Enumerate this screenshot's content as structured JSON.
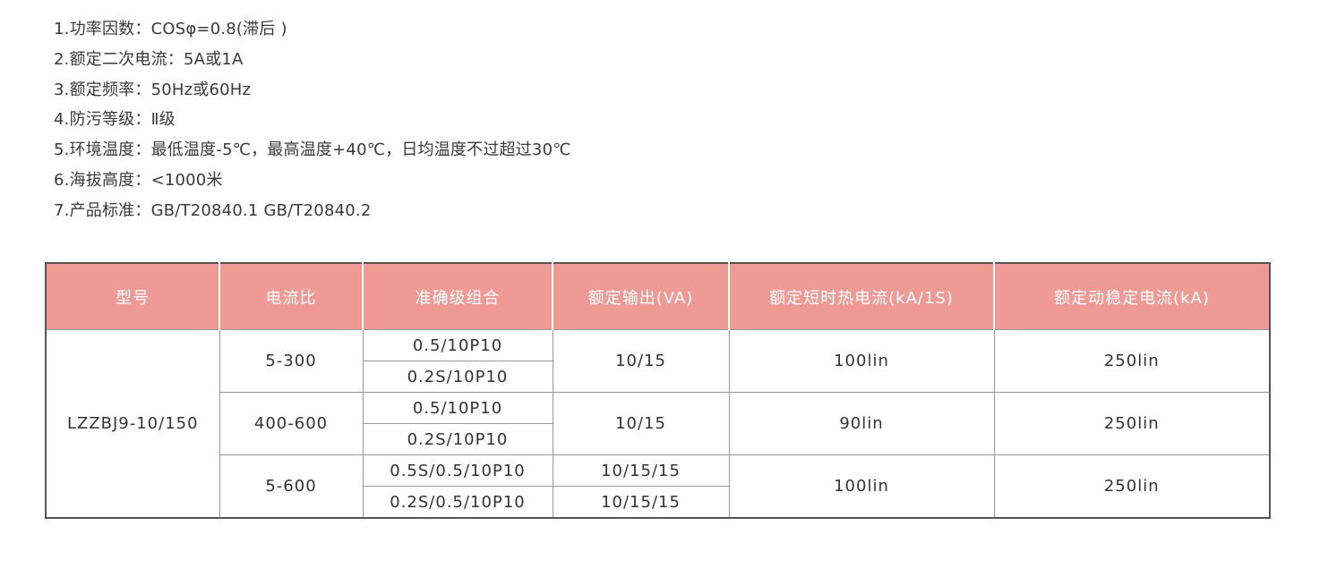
{
  "specs": [
    "1.功率因数：COSφ=0.8(滞后 )",
    "2.额定二次电流：5A或1A",
    "3.额定频率：50Hz或60Hz",
    "4.防污等级：Ⅱ级",
    "5.环境温度：最低温度-5℃，最高温度+40℃，日均温度不过超过30℃",
    "6.海拔高度：<1000米",
    "7.产品标准：GB/T20840.1   GB/T20840.2"
  ],
  "table": {
    "header_color": "#f09a96",
    "headers": [
      "型号",
      "电流比",
      "准确级组合",
      "额定输出(VA)",
      "额定短时热电流(kA/1S)",
      "额定动稳定电流(kA)"
    ],
    "model": "LZZBJ9-10/150",
    "groups": [
      {
        "ratio": "5-300",
        "accuracy": [
          "0.5/10P10",
          "0.2S/10P10"
        ],
        "output": "10/15",
        "thermal": "100lin",
        "dynamic": "250lin"
      },
      {
        "ratio": "400-600",
        "accuracy": [
          "0.5/10P10",
          "0.2S/10P10"
        ],
        "output": "10/15",
        "thermal": "90lin",
        "dynamic": "250lin"
      },
      {
        "ratio": "5-600",
        "accuracy": [
          "0.5S/0.5/10P10",
          "0.2S/0.5/10P10"
        ],
        "output": [
          "10/15/15",
          "10/15/15"
        ],
        "thermal": "100lin",
        "dynamic": "250lin"
      }
    ]
  }
}
